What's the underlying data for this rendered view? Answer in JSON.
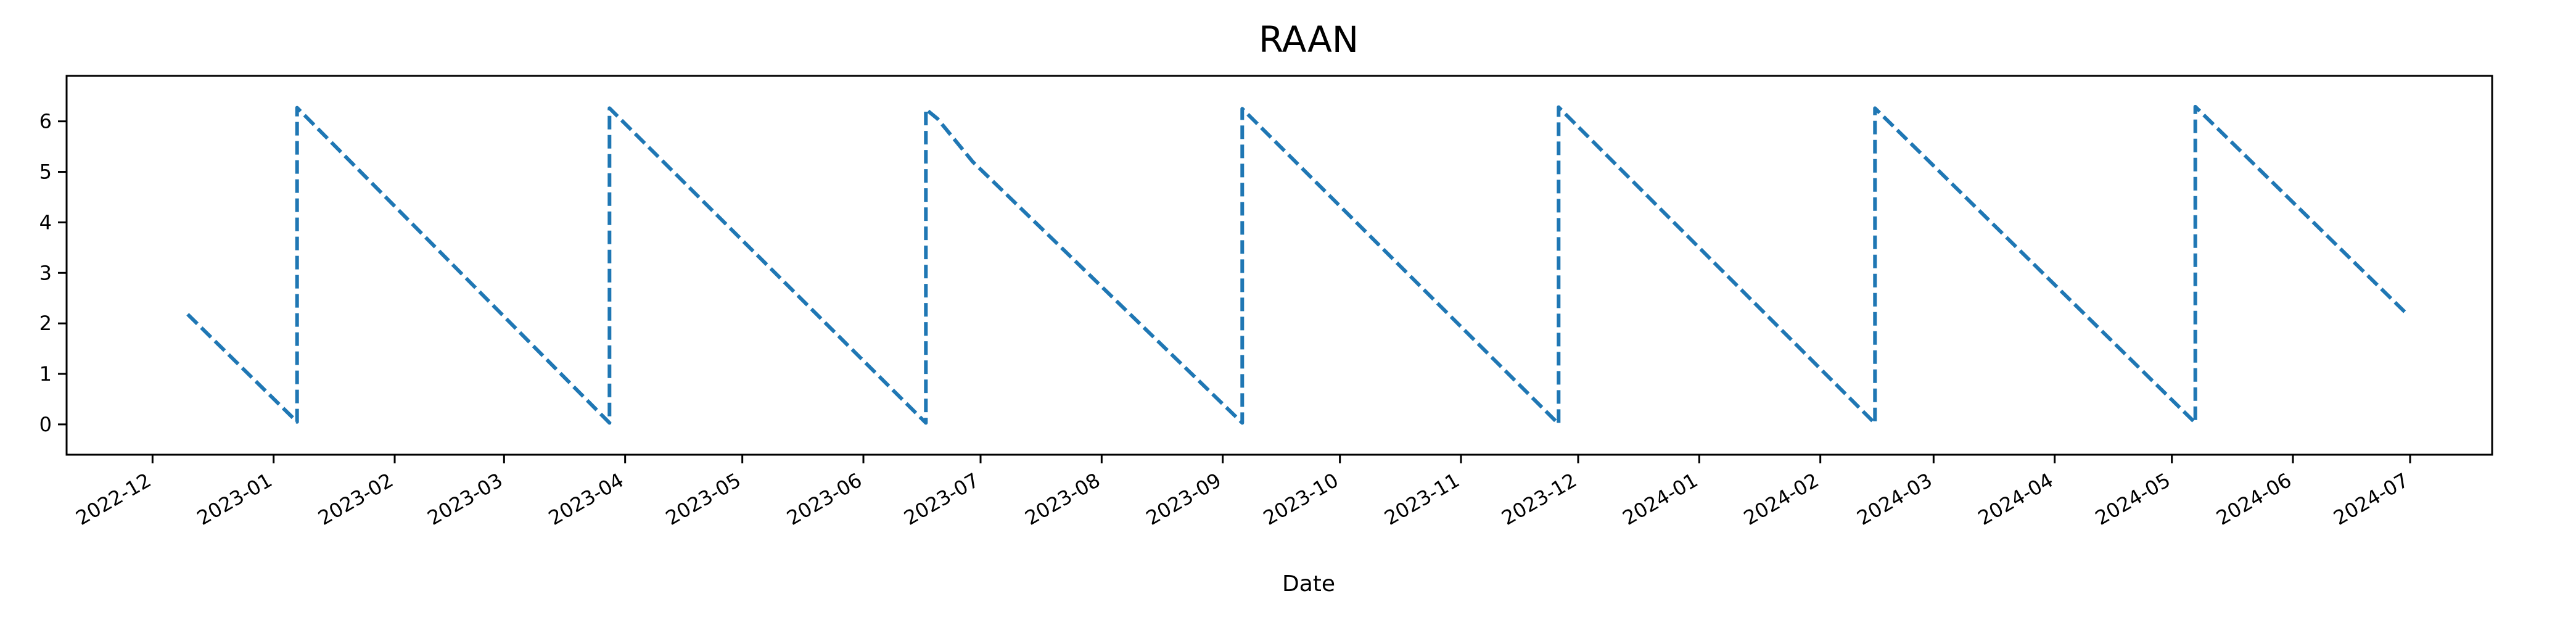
{
  "chart_data": {
    "type": "line",
    "title": "RAAN",
    "xlabel": "Date",
    "ylabel": "",
    "x_ticks": [
      "2022-12",
      "2023-01",
      "2023-02",
      "2023-03",
      "2023-04",
      "2023-05",
      "2023-06",
      "2023-07",
      "2023-08",
      "2023-09",
      "2023-10",
      "2023-11",
      "2023-12",
      "2024-01",
      "2024-02",
      "2024-03",
      "2024-04",
      "2024-05",
      "2024-06",
      "2024-07"
    ],
    "y_ticks": [
      "0",
      "1",
      "2",
      "3",
      "4",
      "5",
      "6"
    ],
    "xlim": [
      "2022-11-09",
      "2024-07-22"
    ],
    "ylim": [
      -0.6,
      6.9
    ],
    "grid": false,
    "line_color": "#1f77b4",
    "line_style": "dashed",
    "series": [
      {
        "points": [
          [
            "2022-12-10",
            2.18
          ],
          [
            "2023-01-07",
            0.05
          ],
          [
            "2023-01-07",
            6.27
          ],
          [
            "2023-03-28",
            0.03
          ],
          [
            "2023-03-28",
            6.26
          ],
          [
            "2023-06-17",
            0.03
          ],
          [
            "2023-06-17",
            6.24
          ],
          [
            "2023-06-20",
            6.05
          ],
          [
            "2023-06-29",
            5.2
          ],
          [
            "2023-09-06",
            0.03
          ],
          [
            "2023-09-06",
            6.25
          ],
          [
            "2023-11-26",
            0.01
          ],
          [
            "2023-11-26",
            6.28
          ],
          [
            "2024-02-15",
            0.02
          ],
          [
            "2024-02-15",
            6.26
          ],
          [
            "2024-05-07",
            0.03
          ],
          [
            "2024-05-07",
            6.29
          ],
          [
            "2024-06-30",
            2.2
          ]
        ]
      }
    ]
  }
}
